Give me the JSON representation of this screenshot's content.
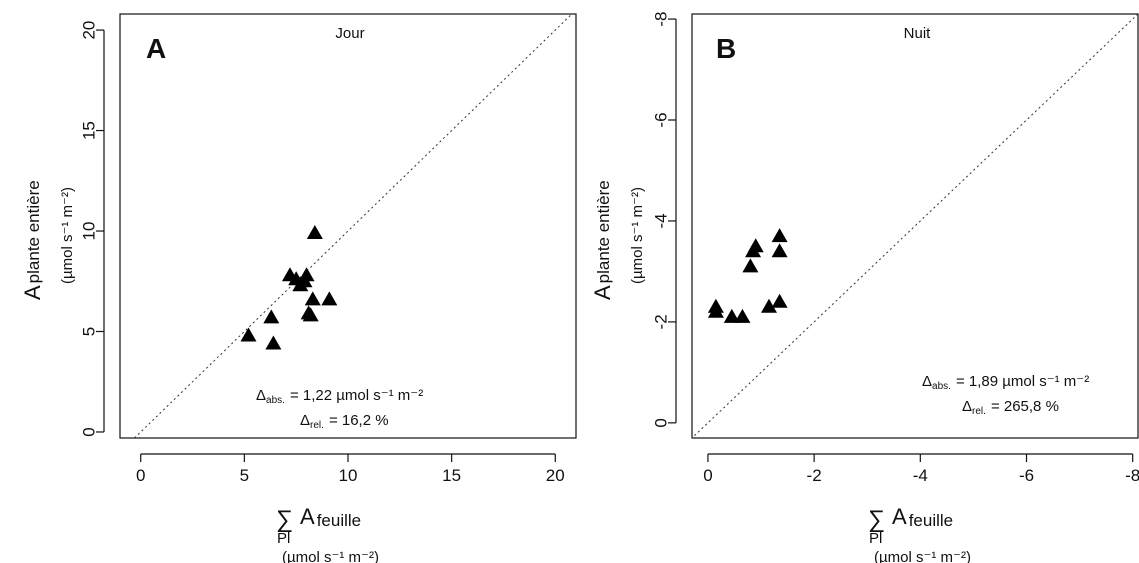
{
  "chart_data": [
    {
      "type": "scatter",
      "panel_label": "A",
      "title": "Jour",
      "xlim": [
        -1,
        21
      ],
      "ylim": [
        -0.3,
        20.8
      ],
      "xticks": [
        0,
        5,
        10,
        15,
        20
      ],
      "yticks": [
        0,
        5,
        10,
        15,
        20
      ],
      "x_tick_labels": [
        "0",
        "5",
        "10",
        "15",
        "20"
      ],
      "y_tick_labels": [
        "0",
        "5",
        "10",
        "15",
        "20"
      ],
      "xlabel": {
        "sum_symbol": "∑",
        "sum_sub": "Pl",
        "main": "A",
        "sub": "feuille",
        "units": "(µmol s⁻¹ m⁻²)"
      },
      "ylabel": {
        "main": "A",
        "sub": "plante entière",
        "units": "(µmol s⁻¹ m⁻²)"
      },
      "reference_line": "1:1",
      "marker": "filled-triangle",
      "points": [
        {
          "x": 5.2,
          "y": 4.8
        },
        {
          "x": 6.3,
          "y": 5.7
        },
        {
          "x": 6.4,
          "y": 4.4
        },
        {
          "x": 7.2,
          "y": 7.8
        },
        {
          "x": 7.5,
          "y": 7.6
        },
        {
          "x": 7.7,
          "y": 7.3
        },
        {
          "x": 7.9,
          "y": 7.5
        },
        {
          "x": 8.0,
          "y": 7.8
        },
        {
          "x": 8.1,
          "y": 5.9
        },
        {
          "x": 8.2,
          "y": 5.8
        },
        {
          "x": 8.3,
          "y": 6.6
        },
        {
          "x": 9.1,
          "y": 6.6
        },
        {
          "x": 8.4,
          "y": 9.9
        }
      ],
      "annotation": {
        "abs_label": "Δ",
        "abs_sub": "abs.",
        "abs_value": "= 1,22 µmol s⁻¹ m⁻²",
        "rel_label": "Δ",
        "rel_sub": "rel.",
        "rel_value": "= 16,2 %"
      }
    },
    {
      "type": "scatter",
      "panel_label": "B",
      "title": "Nuit",
      "xlim": [
        0.3,
        -8.1
      ],
      "ylim": [
        0.3,
        -8.1
      ],
      "xticks": [
        0,
        -2,
        -4,
        -6,
        -8
      ],
      "yticks": [
        0,
        -2,
        -4,
        -6,
        -8
      ],
      "x_tick_labels": [
        "0",
        "-2",
        "-4",
        "-6",
        "-8"
      ],
      "y_tick_labels": [
        "0",
        "-2",
        "-4",
        "-6",
        "-8"
      ],
      "xlabel": {
        "sum_symbol": "∑",
        "sum_sub": "Pl",
        "main": "A",
        "sub": "feuille",
        "units": "(µmol s⁻¹ m⁻²)"
      },
      "ylabel": {
        "main": "A",
        "sub": "plante entière",
        "units": "(µmol s⁻¹ m⁻²)"
      },
      "reference_line": "1:1",
      "marker": "filled-triangle",
      "points": [
        {
          "x": -0.15,
          "y": -2.2
        },
        {
          "x": -0.15,
          "y": -2.3
        },
        {
          "x": -0.45,
          "y": -2.1
        },
        {
          "x": -0.65,
          "y": -2.1
        },
        {
          "x": -0.8,
          "y": -3.1
        },
        {
          "x": -0.85,
          "y": -3.4
        },
        {
          "x": -0.9,
          "y": -3.5
        },
        {
          "x": -1.15,
          "y": -2.3
        },
        {
          "x": -1.35,
          "y": -2.4
        },
        {
          "x": -1.35,
          "y": -3.4
        },
        {
          "x": -1.35,
          "y": -3.7
        }
      ],
      "annotation": {
        "abs_label": "Δ",
        "abs_sub": "abs.",
        "abs_value": "= 1,89 µmol s⁻¹ m⁻²",
        "rel_label": "Δ",
        "rel_sub": "rel.",
        "rel_value": "= 265,8 %"
      }
    }
  ]
}
